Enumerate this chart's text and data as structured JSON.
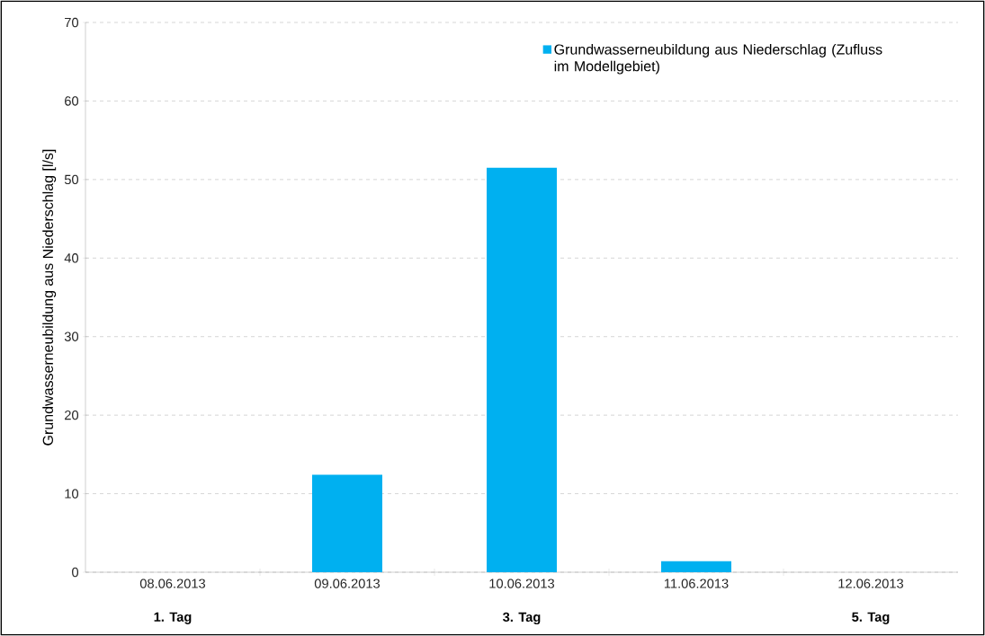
{
  "chart_data": {
    "type": "bar",
    "ylabel": "Grundwasserneubildung aus Niederschlag [l/s]",
    "categories": [
      "08.06.2013",
      "09.06.2013",
      "10.06.2013",
      "11.06.2013",
      "12.06.2013"
    ],
    "series": [
      {
        "name": "Grundwasserneubildung aus Niederschlag (Zufluss im Modellgebiet)",
        "color": "#00b0f0",
        "values": [
          0,
          12.4,
          51.5,
          1.4,
          0
        ]
      }
    ],
    "ylim": [
      0,
      70
    ],
    "yticks": [
      0,
      10,
      20,
      30,
      40,
      50,
      60,
      70
    ],
    "grid": "y",
    "legend": "top right",
    "annotations": [
      "1. Tag",
      "3. Tag",
      "5. Tag"
    ]
  }
}
